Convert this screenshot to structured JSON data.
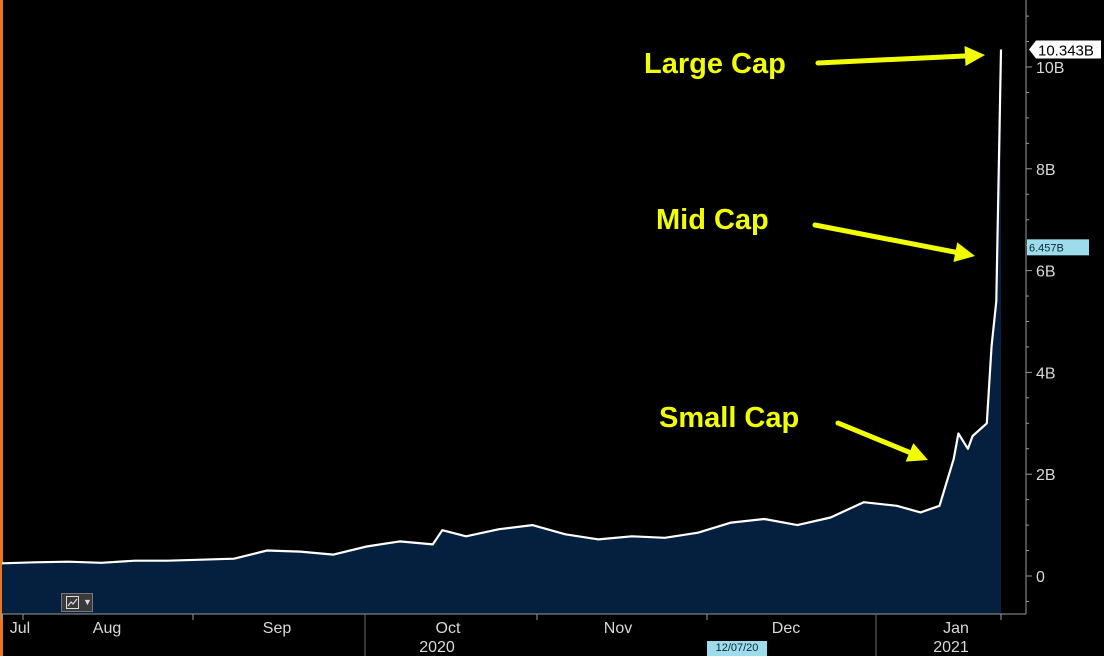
{
  "colors": {
    "background": "#000000",
    "area_fill": "#05203e",
    "line": "#ffffff",
    "annotation": "#f2ff00",
    "price_tag_cyan": "#9ddcea"
  },
  "toolbar": {
    "chart_type_icon": "line-chart-icon",
    "dropdown_icon": "chevron-down-icon"
  },
  "date_marker": "12/07/20",
  "chart_data": {
    "type": "area",
    "y_ticks": [
      "10B",
      "8B",
      "6B",
      "4B",
      "2B",
      "0"
    ],
    "y_tick_values": [
      10,
      8,
      6,
      4,
      2,
      0
    ],
    "ylim": [
      -0.75,
      11.2
    ],
    "x_months": [
      "Jul",
      "Aug",
      "Sep",
      "Oct",
      "Nov",
      "Dec",
      "Jan"
    ],
    "x_years": [
      "2020",
      "2021"
    ],
    "last_value_label": "10.343B",
    "secondary_value_label": "6.457B",
    "annotations": [
      "Large Cap",
      "Mid Cap",
      "Small Cap"
    ],
    "series": [
      {
        "values": [
          [
            "2020-07-01",
            0.25
          ],
          [
            "2020-07-08",
            0.27
          ],
          [
            "2020-07-15",
            0.28
          ],
          [
            "2020-07-22",
            0.26
          ],
          [
            "2020-07-29",
            0.3
          ],
          [
            "2020-08-05",
            0.3
          ],
          [
            "2020-08-12",
            0.32
          ],
          [
            "2020-08-19",
            0.34
          ],
          [
            "2020-08-26",
            0.5
          ],
          [
            "2020-09-02",
            0.48
          ],
          [
            "2020-09-09",
            0.42
          ],
          [
            "2020-09-16",
            0.58
          ],
          [
            "2020-09-23",
            0.68
          ],
          [
            "2020-09-30",
            0.62
          ],
          [
            "2020-10-02",
            0.9
          ],
          [
            "2020-10-07",
            0.78
          ],
          [
            "2020-10-14",
            0.92
          ],
          [
            "2020-10-21",
            1.0
          ],
          [
            "2020-10-28",
            0.82
          ],
          [
            "2020-11-04",
            0.72
          ],
          [
            "2020-11-11",
            0.78
          ],
          [
            "2020-11-18",
            0.75
          ],
          [
            "2020-11-25",
            0.85
          ],
          [
            "2020-12-02",
            1.05
          ],
          [
            "2020-12-09",
            1.12
          ],
          [
            "2020-12-16",
            1.0
          ],
          [
            "2020-12-23",
            1.15
          ],
          [
            "2020-12-30",
            1.45
          ],
          [
            "2021-01-06",
            1.38
          ],
          [
            "2021-01-11",
            1.25
          ],
          [
            "2021-01-15",
            1.38
          ],
          [
            "2021-01-18",
            2.3
          ],
          [
            "2021-01-19",
            2.8
          ],
          [
            "2021-01-21",
            2.5
          ],
          [
            "2021-01-22",
            2.75
          ],
          [
            "2021-01-25",
            3.0
          ],
          [
            "2021-01-26",
            4.5
          ],
          [
            "2021-01-27",
            5.4
          ],
          [
            "2021-01-28",
            10.343
          ]
        ]
      }
    ]
  }
}
